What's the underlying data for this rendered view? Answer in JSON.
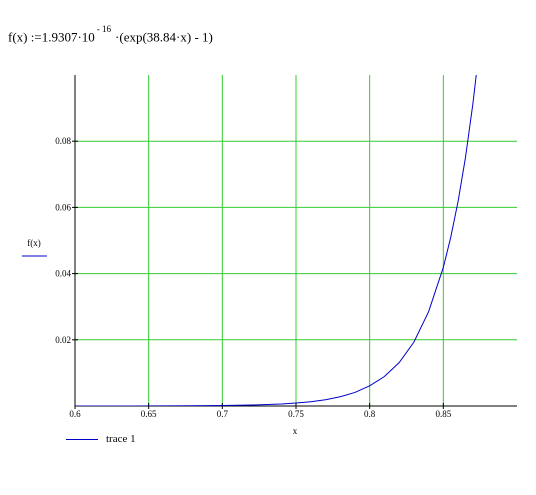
{
  "formula": {
    "lhs": "f(x) :=",
    "coef": "1.9307·10",
    "exp": "- 16",
    "rhs": "·(exp(38.84·x) -  1)"
  },
  "chart_data": {
    "type": "line",
    "xlabel": "x",
    "ylabel": "f(x)",
    "xlim": [
      0.6,
      0.9
    ],
    "ylim": [
      0,
      0.1
    ],
    "x_ticks": [
      0.6,
      0.65,
      0.7,
      0.75,
      0.8,
      0.85
    ],
    "x_tick_labels": [
      "0.6",
      "0.65",
      "0.7",
      "0.75",
      "0.8",
      "0.85"
    ],
    "y_ticks": [
      0.02,
      0.04,
      0.06,
      0.08
    ],
    "y_tick_labels": [
      "0.02",
      "0.04",
      "0.06",
      "0.08"
    ],
    "grid": true,
    "grid_color": "#33cc33",
    "series": [
      {
        "name": "trace 1",
        "color": "#0000cc",
        "x": [
          0.6,
          0.62,
          0.64,
          0.66,
          0.68,
          0.7,
          0.72,
          0.74,
          0.75,
          0.76,
          0.77,
          0.78,
          0.79,
          0.8,
          0.81,
          0.82,
          0.83,
          0.84,
          0.85,
          0.855,
          0.86,
          0.865,
          0.87,
          0.873
        ],
        "y": [
          3e-06,
          7e-06,
          1.5e-05,
          3e-05,
          7e-05,
          0.00014,
          0.00029,
          0.00062,
          0.00091,
          0.0013,
          0.0019,
          0.0028,
          0.0041,
          0.0061,
          0.0089,
          0.0131,
          0.0193,
          0.0285,
          0.0419,
          0.0509,
          0.0618,
          0.075,
          0.0911,
          0.1025
        ]
      }
    ],
    "legend": {
      "position": "bottom-left",
      "label": "trace 1"
    }
  }
}
